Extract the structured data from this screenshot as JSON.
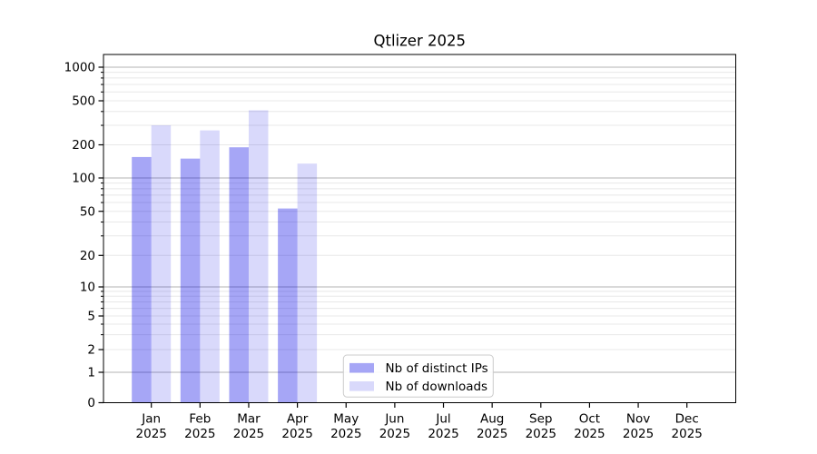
{
  "chart_data": {
    "type": "bar",
    "title": "Qtlizer 2025",
    "categories": [
      "Jan",
      "Feb",
      "Mar",
      "Apr",
      "May",
      "Jun",
      "Jul",
      "Aug",
      "Sep",
      "Oct",
      "Nov",
      "Dec"
    ],
    "category_year": "2025",
    "series": [
      {
        "name": "Nb of distinct IPs",
        "base_color": "#0000e6",
        "opacity": 0.35,
        "values": [
          155,
          150,
          190,
          53,
          null,
          null,
          null,
          null,
          null,
          null,
          null,
          null
        ]
      },
      {
        "name": "Nb of downloads",
        "base_color": "#0000e6",
        "opacity": 0.15,
        "values": [
          300,
          270,
          410,
          135,
          null,
          null,
          null,
          null,
          null,
          null,
          null,
          null
        ]
      }
    ],
    "y_scale": "symlog",
    "y_ticks": [
      0,
      1,
      2,
      5,
      10,
      20,
      50,
      100,
      200,
      500,
      1000
    ],
    "ylim": [
      0,
      1300
    ],
    "grid": true,
    "legend": {
      "entries": [
        "Nb of distinct IPs",
        "Nb of downloads"
      ],
      "position": "lower-center"
    },
    "colors": {
      "major_grid": "#b3b3b3",
      "minor_grid": "#e8e8e8",
      "axis": "#000000",
      "legend_border": "#cccccc",
      "legend_bg": "#ffffff"
    }
  }
}
